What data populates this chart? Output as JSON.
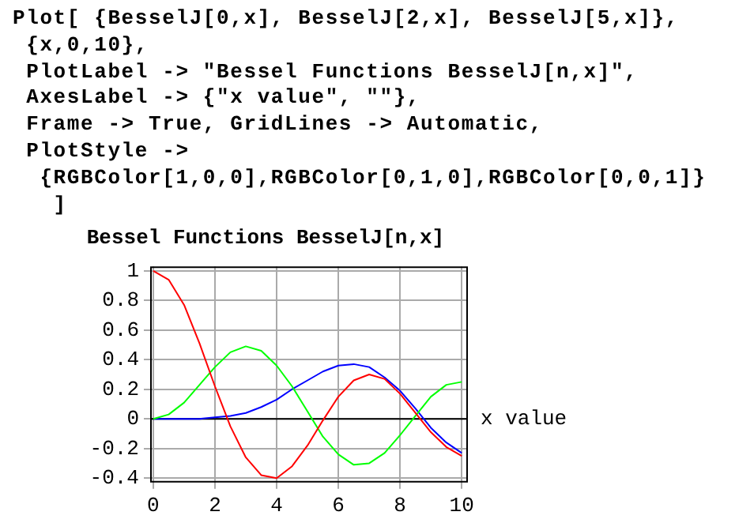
{
  "chart_data": {
    "type": "line",
    "title": "Bessel Functions BesselJ[n,x]",
    "xlabel": "x value",
    "annotations": [
      "Plot[ {BesselJ[0,x], BesselJ[2,x], BesselJ[5,x]},",
      " {x,0,10},",
      " PlotLabel -> \"Bessel Functions BesselJ[n,x]\",",
      " AxesLabel -> {\"x value\", \"\"},",
      " Frame -> True, GridLines -> Automatic,",
      " PlotStyle ->",
      "  {RGBColor[1,0,0],RGBColor[0,1,0],RGBColor[0,0,1]}",
      "   ]"
    ],
    "x": [
      0,
      0.5,
      1,
      1.5,
      2,
      2.5,
      3,
      3.5,
      4,
      4.5,
      5,
      5.5,
      6,
      6.5,
      7,
      7.5,
      8,
      8.5,
      9,
      9.5,
      10
    ],
    "series": [
      {
        "color": "#ff0000",
        "values": [
          1,
          0.94,
          0.77,
          0.51,
          0.22,
          -0.05,
          -0.26,
          -0.38,
          -0.4,
          -0.32,
          -0.18,
          -0.01,
          0.15,
          0.26,
          0.3,
          0.27,
          0.17,
          0.04,
          -0.09,
          -0.19,
          -0.25
        ]
      },
      {
        "color": "#00ff00",
        "values": [
          0,
          0.03,
          0.11,
          0.23,
          0.35,
          0.45,
          0.49,
          0.46,
          0.36,
          0.22,
          0.05,
          -0.12,
          -0.24,
          -0.31,
          -0.3,
          -0.23,
          -0.11,
          0.02,
          0.15,
          0.23,
          0.25
        ]
      },
      {
        "color": "#0000ff",
        "values": [
          0,
          0,
          0,
          0,
          0.01,
          0.02,
          0.04,
          0.08,
          0.13,
          0.2,
          0.26,
          0.32,
          0.36,
          0.37,
          0.35,
          0.28,
          0.19,
          0.07,
          -0.06,
          -0.16,
          -0.23
        ]
      }
    ],
    "xlim": [
      -0.1,
      10.2
    ],
    "ylim": [
      -0.43,
      1.03
    ],
    "xticks": [
      0,
      2,
      4,
      6,
      8,
      10
    ],
    "yticks": [
      {
        "value": -0.4,
        "label": "-0.4"
      },
      {
        "value": -0.2,
        "label": "-0.2"
      },
      0,
      {
        "value": 0.2,
        "label": "0.2"
      },
      {
        "value": 0.4,
        "label": "0.4"
      },
      {
        "value": 0.6,
        "label": "0.6"
      },
      {
        "value": 0.8,
        "label": "0.8"
      },
      1
    ],
    "ref_lines": [
      {
        "axis": "y",
        "value": 0,
        "color": "#000000"
      }
    ],
    "grid": true,
    "legend": false,
    "marker": "none",
    "line_style": "solid"
  }
}
